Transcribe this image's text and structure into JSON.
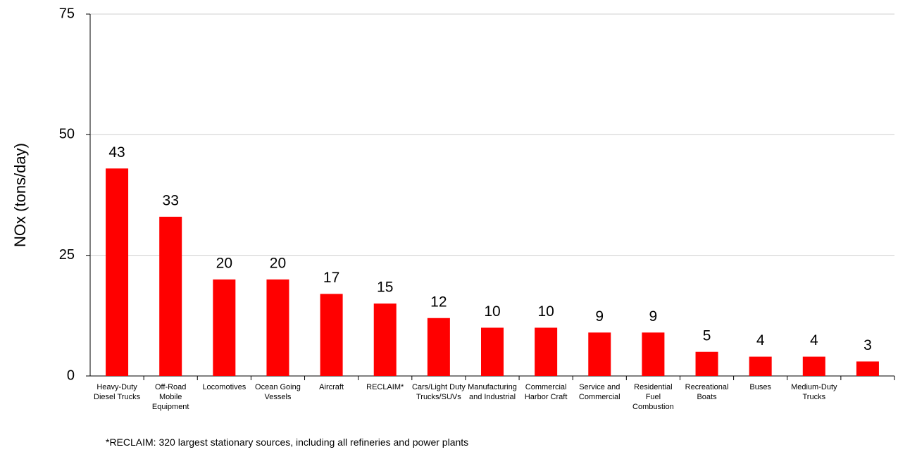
{
  "chart_data": {
    "type": "bar",
    "y_label": "NOx (tons/day)",
    "categories": [
      "Heavy-Duty Diesel Trucks",
      "Off-Road Mobile Equipment",
      "Locomotives",
      "Ocean Going Vessels",
      "Aircraft",
      "RECLAIM*",
      "Cars/Light Duty Trucks/SUVs",
      "Manufacturing and Industrial",
      "Commercial Harbor Craft",
      "Service and Commercial",
      "Residential Fuel Combustion",
      "Recreational Boats",
      "Buses",
      "Medium-Duty Trucks",
      ""
    ],
    "values": [
      43,
      33,
      20,
      20,
      17,
      15,
      12,
      10,
      10,
      9,
      9,
      5,
      4,
      4,
      3
    ],
    "color": "#ff0000",
    "ylim": [
      0,
      75
    ],
    "yticks": [
      0,
      25,
      50,
      75
    ],
    "grid": true,
    "footnote": "*RECLAIM:  320 largest stationary sources, including all refineries and power plants"
  }
}
